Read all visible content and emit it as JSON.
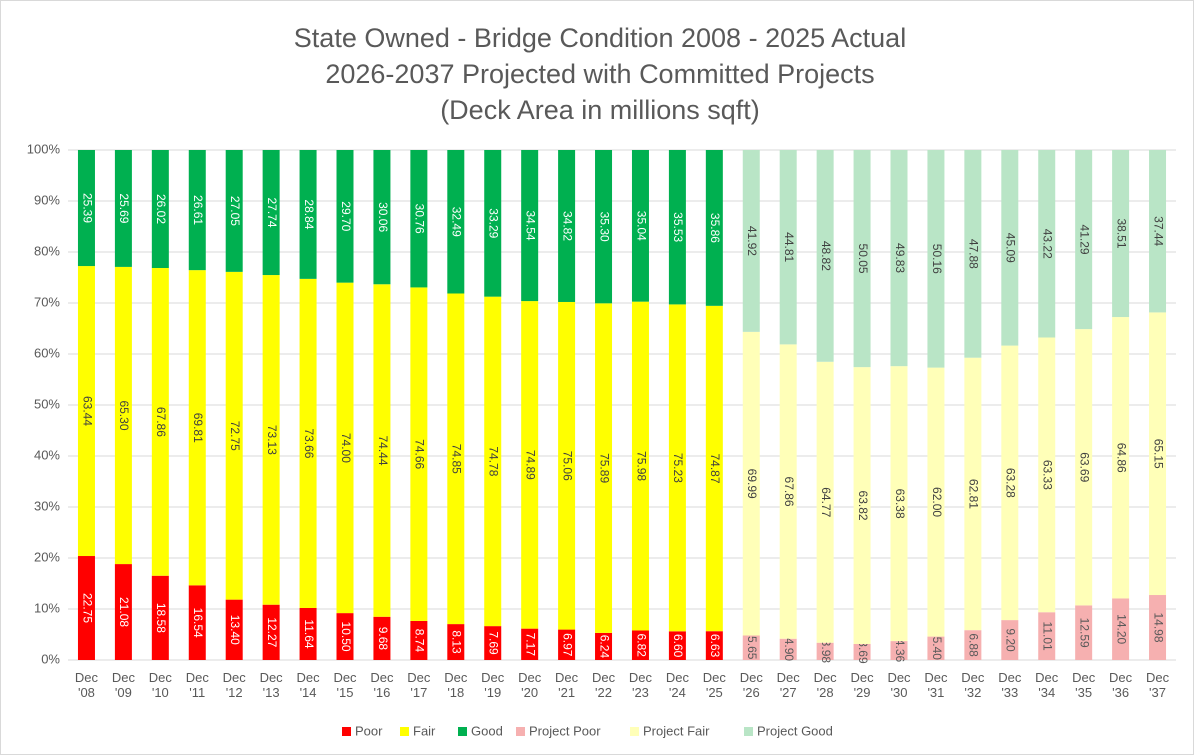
{
  "chart_data": {
    "type": "bar",
    "stacking": "percent",
    "title_lines": [
      "State Owned - Bridge Condition 2008 - 2025 Actual",
      "2026-2037 Projected with Committed Projects",
      "(Deck Area in millions sqft)"
    ],
    "categories": [
      "Dec '08",
      "Dec '09",
      "Dec '10",
      "Dec '11",
      "Dec '12",
      "Dec '13",
      "Dec '14",
      "Dec '15",
      "Dec '16",
      "Dec '17",
      "Dec '18",
      "Dec '19",
      "Dec '20",
      "Dec '21",
      "Dec '22",
      "Dec '23",
      "Dec '24",
      "Dec '25",
      "Dec '26",
      "Dec '27",
      "Dec '28",
      "Dec '29",
      "Dec '30",
      "Dec '31",
      "Dec '32",
      "Dec '33",
      "Dec '34",
      "Dec '35",
      "Dec '36",
      "Dec '37"
    ],
    "ylim": [
      0,
      100
    ],
    "yticks": [
      {
        "value": 0,
        "label": "0%"
      },
      {
        "value": 10,
        "label": "10%"
      },
      {
        "value": 20,
        "label": "20%"
      },
      {
        "value": 30,
        "label": "30%"
      },
      {
        "value": 40,
        "label": "40%"
      },
      {
        "value": 50,
        "label": "50%"
      },
      {
        "value": 60,
        "label": "60%"
      },
      {
        "value": 70,
        "label": "70%"
      },
      {
        "value": 80,
        "label": "80%"
      },
      {
        "value": 90,
        "label": "90%"
      },
      {
        "value": 100,
        "label": "100%"
      }
    ],
    "grid": true,
    "legend": "bottom",
    "series": [
      {
        "name": "Poor",
        "color": "#ff0000",
        "label_color": "#ffffff",
        "values": [
          22.75,
          21.08,
          18.58,
          16.54,
          13.4,
          12.27,
          11.64,
          10.5,
          9.68,
          8.74,
          8.13,
          7.69,
          7.17,
          6.97,
          6.24,
          6.82,
          6.6,
          6.63,
          null,
          null,
          null,
          null,
          null,
          null,
          null,
          null,
          null,
          null,
          null,
          null
        ],
        "value_labels": [
          "22.75",
          "21.08",
          "18.58",
          "16.54",
          "13.40",
          "12.27",
          "11.64",
          "10.50",
          "9.68",
          "8.74",
          "8.13",
          "7.69",
          "7.17",
          "6.97",
          "6.24",
          "6.82",
          "6.60",
          "6.63",
          null,
          null,
          null,
          null,
          null,
          null,
          null,
          null,
          null,
          null,
          null,
          null
        ]
      },
      {
        "name": "Fair",
        "color": "#ffff00",
        "label_color": "#404040",
        "values": [
          63.44,
          65.3,
          67.86,
          69.81,
          72.75,
          73.13,
          73.66,
          74,
          74.44,
          74.66,
          74.85,
          74.78,
          74.89,
          75.06,
          75.89,
          75.98,
          75.23,
          74.87,
          null,
          null,
          null,
          null,
          null,
          null,
          null,
          null,
          null,
          null,
          null,
          null
        ],
        "value_labels": [
          "63.44",
          "65.30",
          "67.86",
          "69.81",
          "72.75",
          "73.13",
          "73.66",
          "74.00",
          "74.44",
          "74.66",
          "74.85",
          "74.78",
          "74.89",
          "75.06",
          "75.89",
          "75.98",
          "75.23",
          "74.87",
          null,
          null,
          null,
          null,
          null,
          null,
          null,
          null,
          null,
          null,
          null,
          null
        ]
      },
      {
        "name": "Good",
        "color": "#00b050",
        "label_color": "#ffffff",
        "values": [
          25.39,
          25.69,
          26.02,
          26.61,
          27.05,
          27.74,
          28.84,
          29.7,
          30.06,
          30.76,
          32.49,
          33.29,
          34.54,
          34.82,
          35.3,
          35.04,
          35.53,
          35.86,
          null,
          null,
          null,
          null,
          null,
          null,
          null,
          null,
          null,
          null,
          null,
          null
        ],
        "value_labels": [
          "25.39",
          "25.69",
          "26.02",
          "26.61",
          "27.05",
          "27.74",
          "28.84",
          "29.70",
          "30.06",
          "30.76",
          "32.49",
          "33.29",
          "34.54",
          "34.82",
          "35.30",
          "35.04",
          "35.53",
          "35.86",
          null,
          null,
          null,
          null,
          null,
          null,
          null,
          null,
          null,
          null,
          null,
          null
        ]
      },
      {
        "name": "Project Poor",
        "color": "#f6b0b0",
        "label_color": "#595959",
        "values": [
          null,
          null,
          null,
          null,
          null,
          null,
          null,
          null,
          null,
          null,
          null,
          null,
          null,
          null,
          null,
          null,
          null,
          null,
          5.65,
          4.9,
          3.98,
          3.69,
          4.36,
          5.4,
          6.88,
          9.2,
          11.01,
          12.59,
          14.2,
          14.98
        ],
        "value_labels": [
          null,
          null,
          null,
          null,
          null,
          null,
          null,
          null,
          null,
          null,
          null,
          null,
          null,
          null,
          null,
          null,
          null,
          null,
          "5.65",
          "4.90",
          "3.98",
          "3.69",
          "4.36",
          "5.40",
          "6.88",
          "9.20",
          "11.01",
          "12.59",
          "14.20",
          "14.98"
        ]
      },
      {
        "name": "Project Fair",
        "color": "#ffffb8",
        "label_color": "#404040",
        "values": [
          null,
          null,
          null,
          null,
          null,
          null,
          null,
          null,
          null,
          null,
          null,
          null,
          null,
          null,
          null,
          null,
          null,
          null,
          69.99,
          67.86,
          64.77,
          63.82,
          63.38,
          62,
          62.81,
          63.28,
          63.33,
          63.69,
          64.86,
          65.15
        ],
        "value_labels": [
          null,
          null,
          null,
          null,
          null,
          null,
          null,
          null,
          null,
          null,
          null,
          null,
          null,
          null,
          null,
          null,
          null,
          null,
          "69.99",
          "67.86",
          "64.77",
          "63.82",
          "63.38",
          "62.00",
          "62.81",
          "63.28",
          "63.33",
          "63.69",
          "64.86",
          "65.15"
        ]
      },
      {
        "name": "Project Good",
        "color": "#b9e5c6",
        "label_color": "#404040",
        "values": [
          null,
          null,
          null,
          null,
          null,
          null,
          null,
          null,
          null,
          null,
          null,
          null,
          null,
          null,
          null,
          null,
          null,
          null,
          41.92,
          44.81,
          48.82,
          50.05,
          49.83,
          50.16,
          47.88,
          45.09,
          43.22,
          41.29,
          38.51,
          37.44
        ],
        "value_labels": [
          null,
          null,
          null,
          null,
          null,
          null,
          null,
          null,
          null,
          null,
          null,
          null,
          null,
          null,
          null,
          null,
          null,
          null,
          "41.92",
          "44.81",
          "48.82",
          "50.05",
          "49.83",
          "50.16",
          "47.88",
          "45.09",
          "43.22",
          "41.29",
          "38.51",
          "37.44"
        ]
      }
    ]
  }
}
